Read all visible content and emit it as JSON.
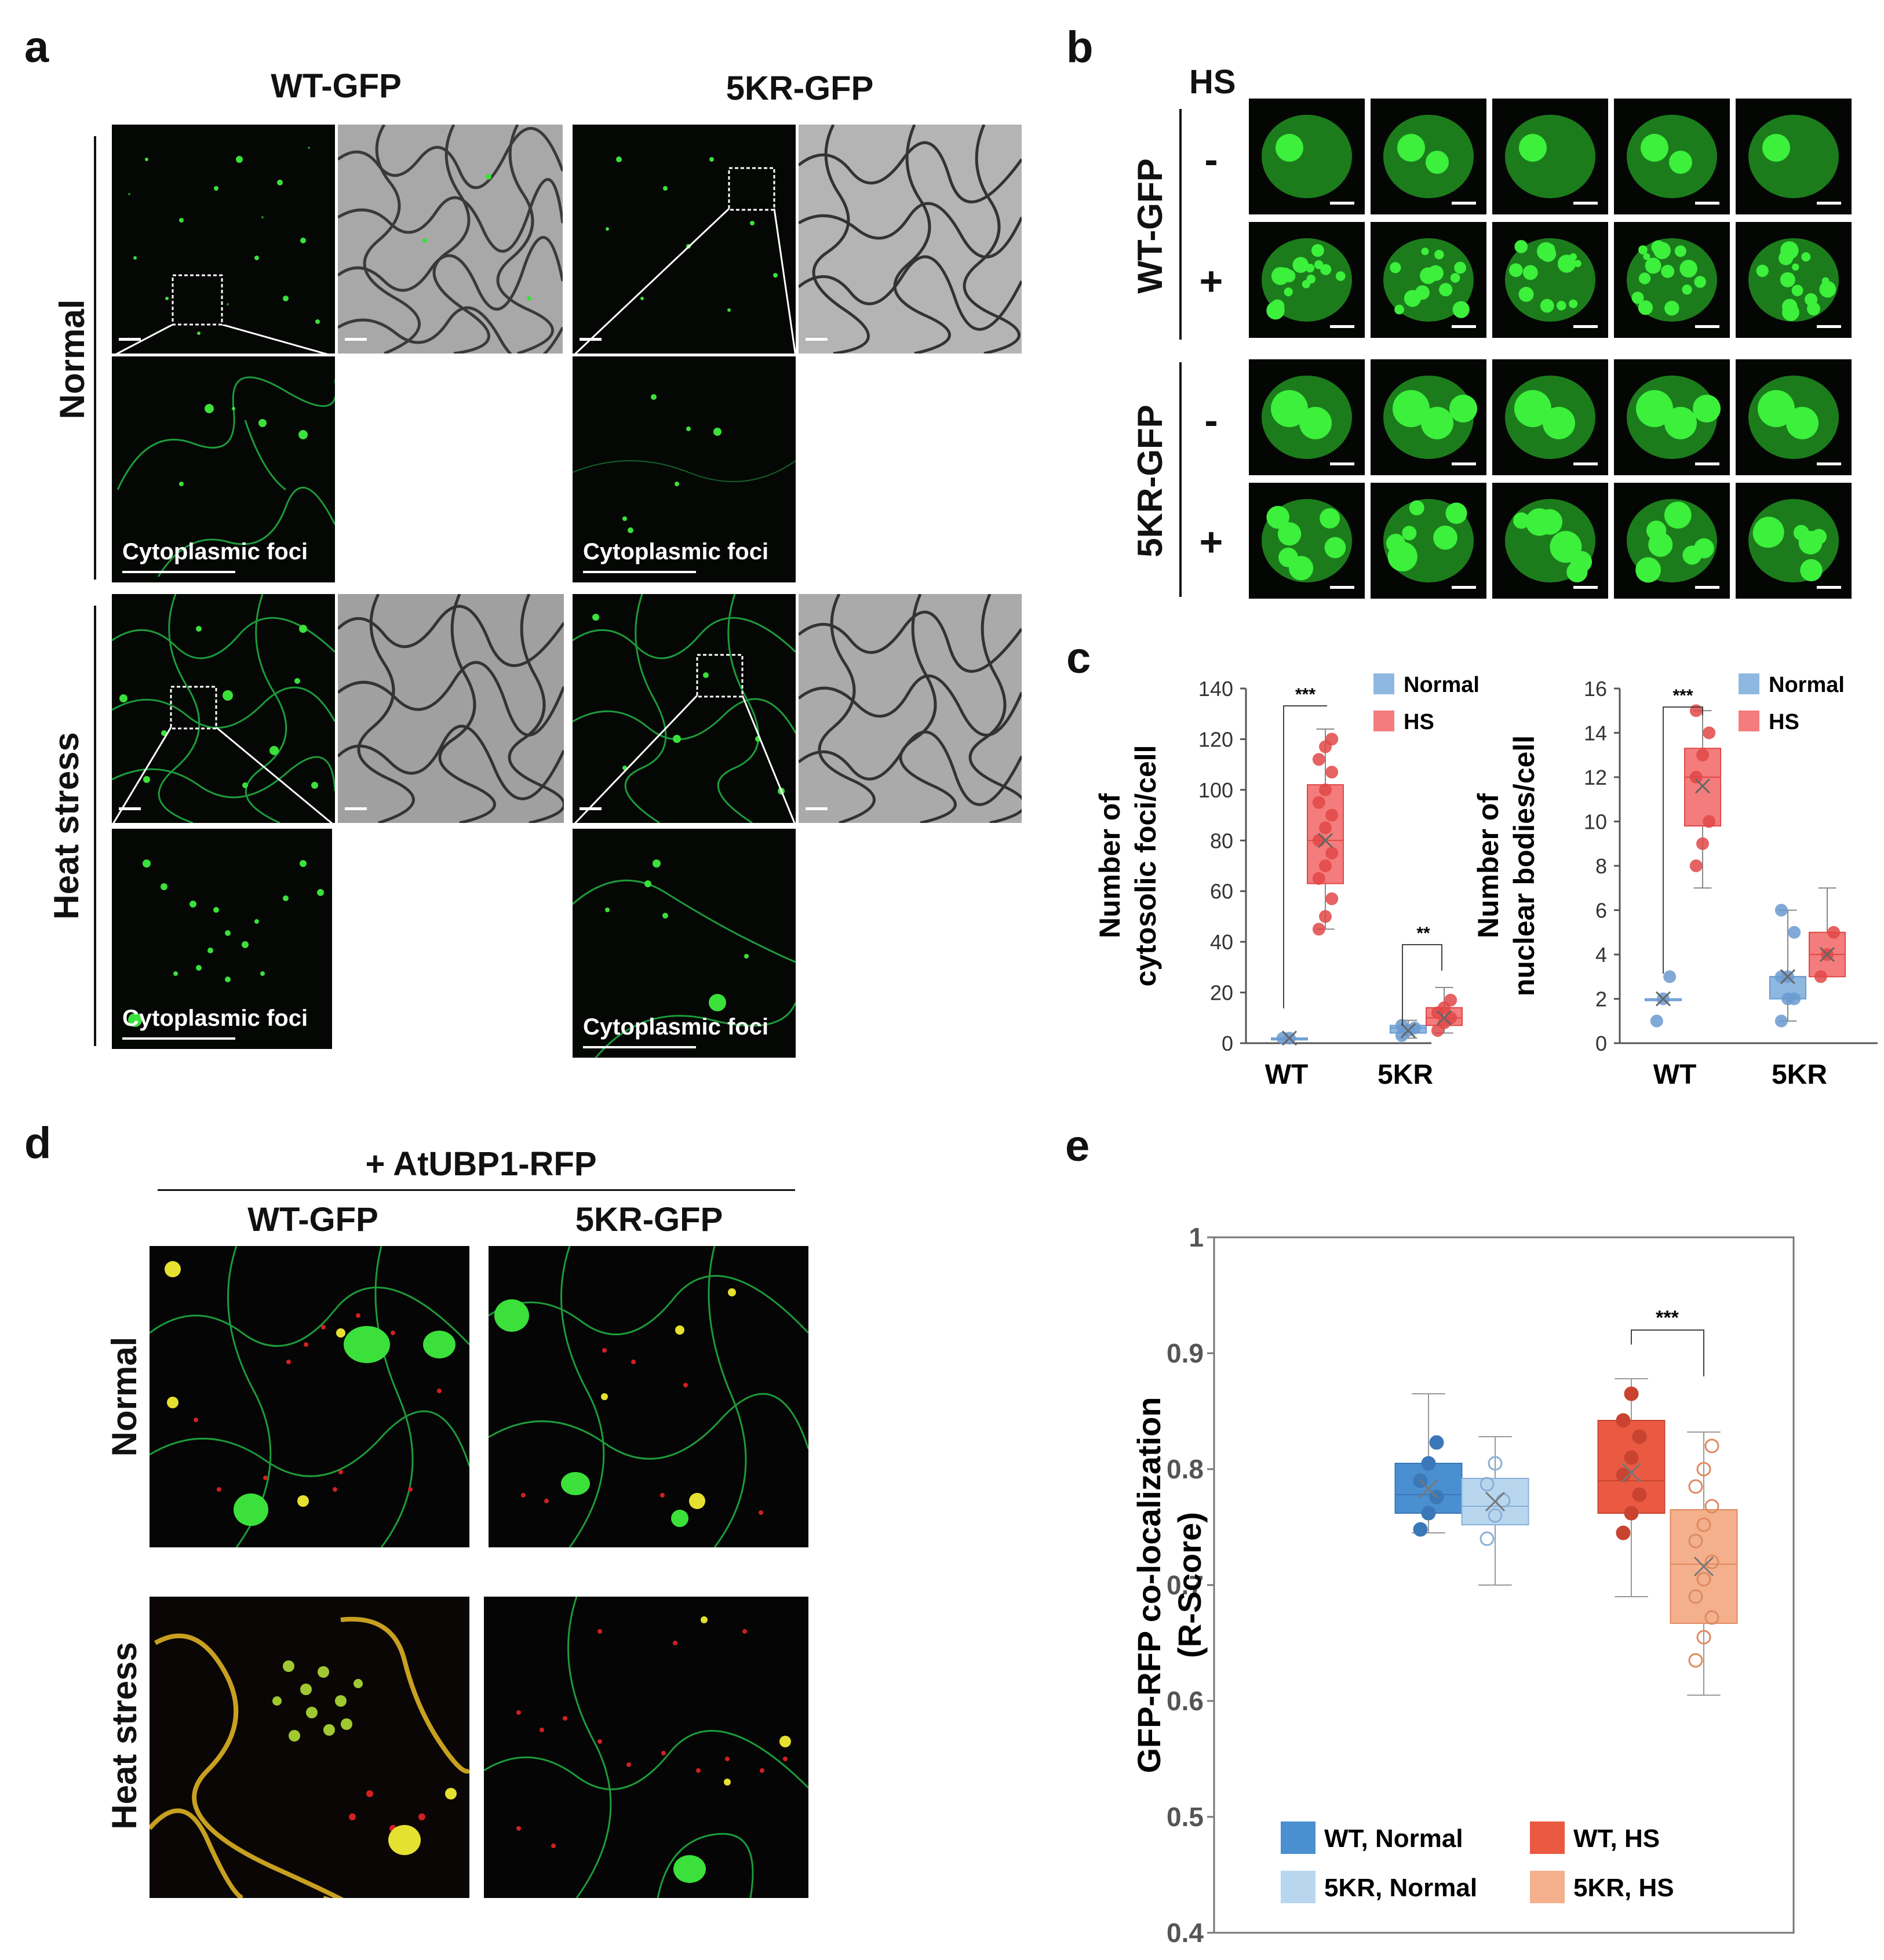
{
  "panels": {
    "a": {
      "letter": "a",
      "columns": [
        "WT-GFP",
        "5KR-GFP"
      ],
      "rows": [
        "Normal",
        "Heat stress"
      ],
      "caption": "Cytoplasmic foci"
    },
    "b": {
      "letter": "b",
      "hs_label": "HS",
      "genotypes": [
        "WT-GFP",
        "5KR-GFP"
      ],
      "signs": [
        "-",
        "+"
      ]
    },
    "c": {
      "letter": "c"
    },
    "d": {
      "letter": "d",
      "header": "+ AtUBP1-RFP",
      "columns": [
        "WT-GFP",
        "5KR-GFP"
      ],
      "rows": [
        "Normal",
        "Heat stress"
      ]
    },
    "e": {
      "letter": "e"
    }
  },
  "colors": {
    "normal": "#8fb8e0",
    "hs": "#f47c7c",
    "wt_normal": "#4a8fd0",
    "kr_normal": "#b9d6ef",
    "wt_hs": "#ea5a42",
    "kr_hs": "#f4b08c",
    "gfp": "#2dd02d",
    "rfp": "#d01818"
  },
  "chart_data": [
    {
      "id": "c-left",
      "type": "box",
      "ylabel": [
        "Number of",
        "cytosolic foci/cell"
      ],
      "ylim": [
        0,
        140
      ],
      "yticks": [
        0,
        20,
        40,
        60,
        80,
        100,
        120,
        140
      ],
      "categories": [
        "WT",
        "5KR"
      ],
      "legend": [
        "Normal",
        "HS"
      ],
      "significance": [
        {
          "between": "WT Normal vs WT HS",
          "label": "***"
        },
        {
          "between": "5KR Normal vs 5KR HS",
          "label": "**"
        }
      ],
      "series": [
        {
          "name": "Normal",
          "boxes": [
            {
              "category": "WT",
              "min": 2,
              "q1": 2,
              "median": 2,
              "q3": 2,
              "max": 2,
              "mean": 2,
              "points": [
                2,
                2
              ]
            },
            {
              "category": "5KR",
              "min": 2,
              "q1": 4,
              "median": 6,
              "q3": 7,
              "max": 9,
              "mean": 5,
              "points": [
                3,
                5,
                6,
                7
              ]
            }
          ]
        },
        {
          "name": "HS",
          "boxes": [
            {
              "category": "WT",
              "min": 45,
              "q1": 63,
              "median": 80,
              "q3": 102,
              "max": 124,
              "mean": 80,
              "points": [
                45,
                50,
                57,
                65,
                70,
                75,
                80,
                85,
                90,
                95,
                100,
                107,
                112,
                117,
                120
              ]
            },
            {
              "category": "5KR",
              "min": 4,
              "q1": 7,
              "median": 10,
              "q3": 14,
              "max": 22,
              "mean": 10,
              "points": [
                5,
                8,
                10,
                12,
                14,
                17
              ]
            }
          ]
        }
      ]
    },
    {
      "id": "c-right",
      "type": "box",
      "ylabel": [
        "Number of",
        "nuclear bodies/cell"
      ],
      "ylim": [
        0,
        16
      ],
      "yticks": [
        0,
        2,
        4,
        6,
        8,
        10,
        12,
        14,
        16
      ],
      "categories": [
        "WT",
        "5KR"
      ],
      "legend": [
        "Normal",
        "HS"
      ],
      "significance": [
        {
          "between": "WT Normal vs WT HS",
          "label": "***"
        }
      ],
      "series": [
        {
          "name": "Normal",
          "boxes": [
            {
              "category": "WT",
              "min": 2,
              "q1": 2,
              "median": 2,
              "q3": 2,
              "max": 2,
              "mean": 2,
              "points": [
                1,
                2,
                3
              ]
            },
            {
              "category": "5KR",
              "min": 1,
              "q1": 2,
              "median": 3,
              "q3": 3,
              "max": 6,
              "mean": 3,
              "points": [
                1,
                2,
                2,
                3,
                3,
                5,
                6
              ]
            }
          ]
        },
        {
          "name": "HS",
          "boxes": [
            {
              "category": "WT",
              "min": 7,
              "q1": 9.8,
              "median": 12,
              "q3": 13.3,
              "max": 15,
              "mean": 11.6,
              "points": [
                8,
                9,
                10,
                12,
                13,
                14,
                15
              ]
            },
            {
              "category": "5KR",
              "min": 3,
              "q1": 3,
              "median": 4,
              "q3": 5,
              "max": 7,
              "mean": 4,
              "points": [
                3,
                4,
                5
              ]
            }
          ]
        }
      ]
    },
    {
      "id": "e",
      "type": "box",
      "ylabel": [
        "GFP-RFP co-localization",
        "(R-Score)"
      ],
      "ylim": [
        0.4,
        1
      ],
      "yticks": [
        0.4,
        0.5,
        0.6,
        0.7,
        0.8,
        0.9,
        1
      ],
      "ytick_labels": [
        "0.4",
        "0.5",
        "0.6",
        "0.7",
        "0.8",
        "0.9",
        "1"
      ],
      "legend": [
        "WT, Normal",
        "WT, HS",
        "5KR, Normal",
        "5KR, HS"
      ],
      "significance": [
        {
          "between": "WT, HS vs 5KR, HS",
          "label": "***"
        }
      ],
      "series": [
        {
          "name": "WT, Normal",
          "min": 0.745,
          "q1": 0.762,
          "median": 0.778,
          "q3": 0.805,
          "max": 0.865,
          "mean": 0.783,
          "points": [
            0.748,
            0.762,
            0.776,
            0.79,
            0.805,
            0.823
          ]
        },
        {
          "name": "5KR, Normal",
          "min": 0.7,
          "q1": 0.752,
          "median": 0.768,
          "q3": 0.792,
          "max": 0.828,
          "mean": 0.772,
          "points": [
            0.74,
            0.76,
            0.773,
            0.787,
            0.805
          ]
        },
        {
          "name": "WT, HS",
          "min": 0.69,
          "q1": 0.762,
          "median": 0.79,
          "q3": 0.842,
          "max": 0.878,
          "mean": 0.797,
          "points": [
            0.745,
            0.762,
            0.778,
            0.795,
            0.81,
            0.828,
            0.842,
            0.865
          ]
        },
        {
          "name": "5KR, HS",
          "min": 0.605,
          "q1": 0.667,
          "median": 0.718,
          "q3": 0.765,
          "max": 0.832,
          "mean": 0.716,
          "points": [
            0.635,
            0.655,
            0.672,
            0.69,
            0.705,
            0.72,
            0.738,
            0.752,
            0.768,
            0.785,
            0.8,
            0.82
          ]
        }
      ]
    }
  ]
}
